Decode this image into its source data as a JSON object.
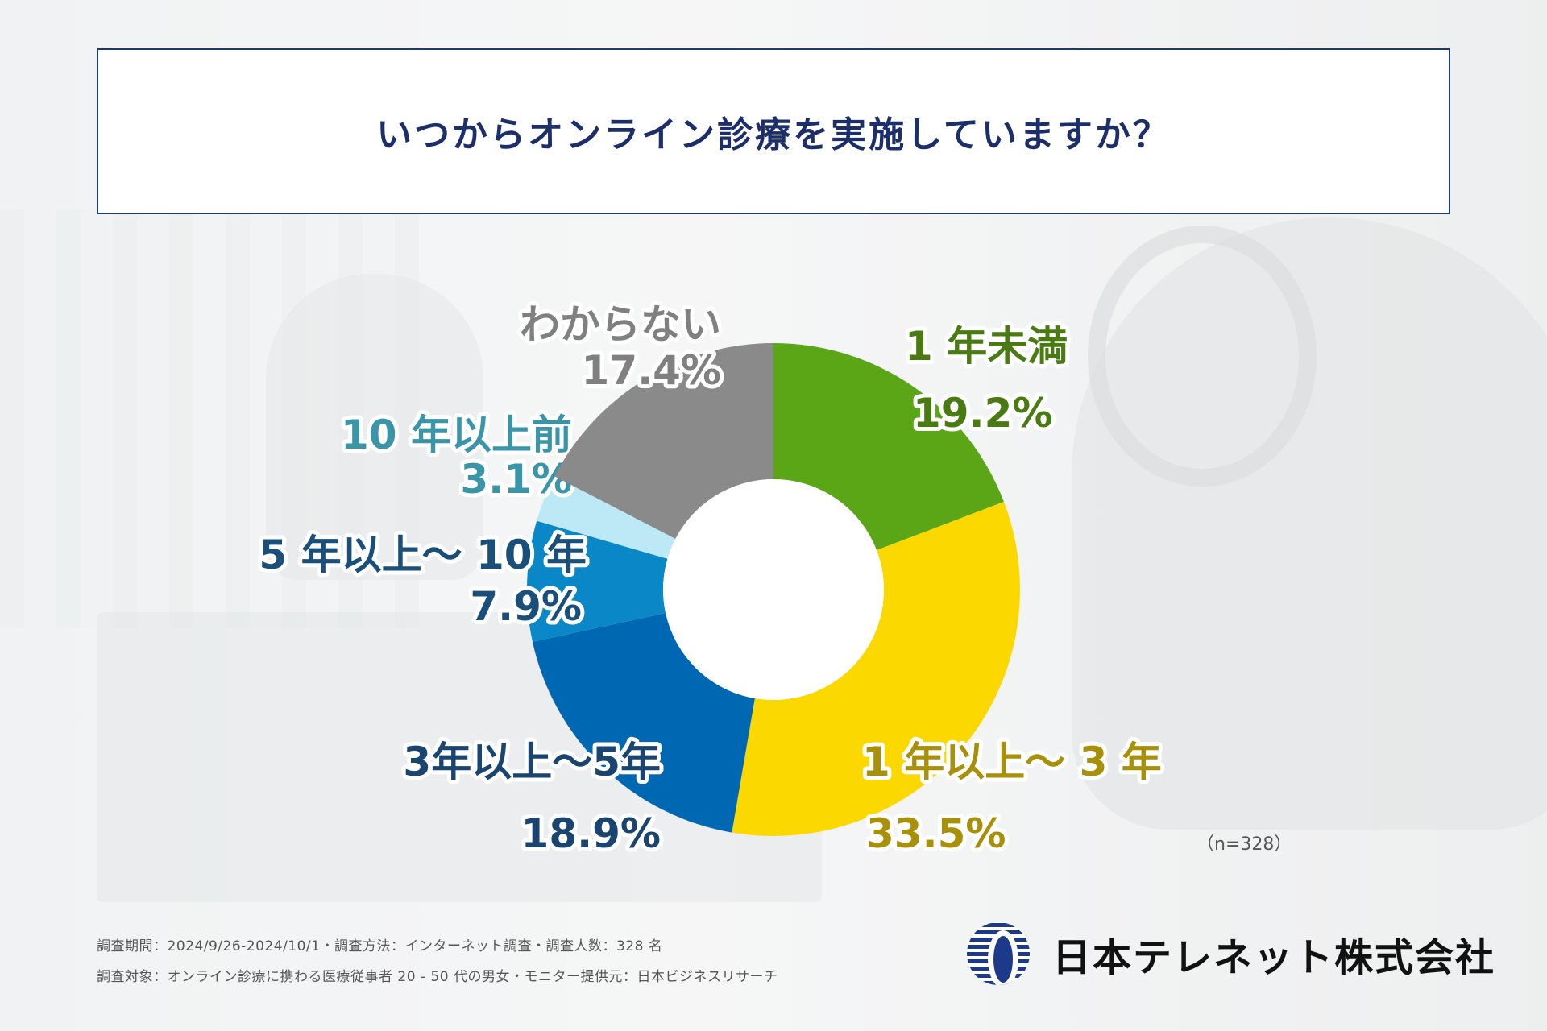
{
  "title": "いつからオンライン診療を実施していますか？",
  "sample_note": "（n=328）",
  "footer": {
    "line1": "調査期間：2024/9/26-2024/10/1・調査方法：インターネット調査・調査人数：328 名",
    "line2": "調査対象：オンライン診療に携わる医療従事者 20 - 50 代の男女・モニター提供元：日本ビジネスリサーチ"
  },
  "company": "日本テレネット株式会社",
  "chart_data": {
    "type": "pie",
    "style": "donut",
    "title": "いつからオンライン診療を実施していますか？",
    "n": 328,
    "slices": [
      {
        "label": "1 年未満",
        "value": 19.2,
        "value_label": "19.2%",
        "color": "#5aa617",
        "text_color": "#4a7a12"
      },
      {
        "label": "1 年以上〜 3 年",
        "value": 33.5,
        "value_label": "33.5%",
        "color": "#fbd800",
        "text_color": "#a8900b"
      },
      {
        "label": "3年以上〜5年",
        "value": 18.9,
        "value_label": "18.9%",
        "color": "#0068b2",
        "text_color": "#1a4570"
      },
      {
        "label": "5 年以上〜 10 年",
        "value": 7.9,
        "value_label": "7.9%",
        "color": "#0987c7",
        "text_color": "#1a4f7a"
      },
      {
        "label": "10 年以上前",
        "value": 3.1,
        "value_label": "3.1%",
        "color": "#bde8f5",
        "text_color": "#3a95a8"
      },
      {
        "label": "わからない",
        "value": 17.4,
        "value_label": "17.4%",
        "color": "#8a8a8a",
        "text_color": "#808080"
      }
    ]
  }
}
